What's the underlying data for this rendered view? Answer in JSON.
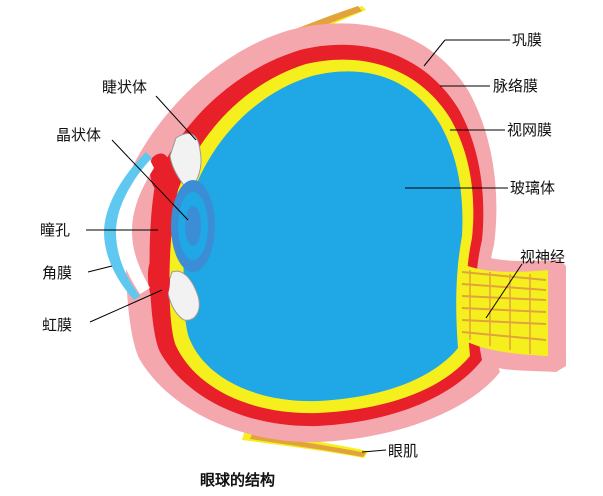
{
  "diagram": {
    "caption": "眼球的结构",
    "labels": {
      "sclera": "巩膜",
      "choroid": "脉络膜",
      "retina": "视网膜",
      "vitreous": "玻璃体",
      "optic_nerve": "视神经",
      "eye_muscle": "眼肌",
      "ciliary_body": "睫状体",
      "lens": "晶状体",
      "pupil": "瞳孔",
      "cornea": "角膜",
      "iris": "虹膜"
    },
    "colors": {
      "sclera": "#f4a8ae",
      "choroid": "#e8202a",
      "retina": "#f6ef1e",
      "vitreous": "#1fa7e6",
      "lens": "#3b8ed6",
      "cornea": "#5ec8f0",
      "muscle": "#e2a33c",
      "ciliary": "#f2f2f2"
    }
  }
}
